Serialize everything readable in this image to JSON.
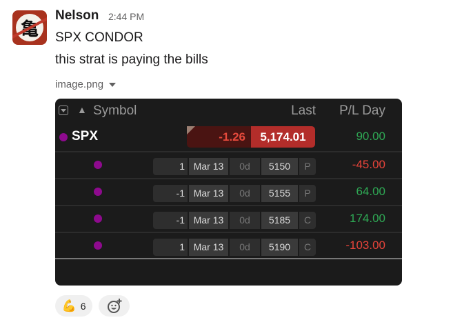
{
  "message": {
    "avatar_glyph": "亀",
    "author": "Nelson",
    "time": "2:44 PM",
    "lines": [
      "SPX CONDOR",
      "this strat is paying the bills"
    ],
    "attachment_name": "image.png"
  },
  "table": {
    "headers": {
      "symbol": "Symbol",
      "last": "Last",
      "pl_day": "P/L Day"
    },
    "underlying": {
      "symbol": "SPX",
      "change": "-1.26",
      "last": "5,174.01",
      "pl_day": "90.00"
    },
    "legs": [
      {
        "qty": "1",
        "expiry": "Mar 13",
        "dte": "0d",
        "strike": "5150",
        "type": "P",
        "pl_day": "-45.00"
      },
      {
        "qty": "-1",
        "expiry": "Mar 13",
        "dte": "0d",
        "strike": "5155",
        "type": "P",
        "pl_day": "64.00"
      },
      {
        "qty": "-1",
        "expiry": "Mar 13",
        "dte": "0d",
        "strike": "5185",
        "type": "C",
        "pl_day": "174.00"
      },
      {
        "qty": "1",
        "expiry": "Mar 13",
        "dte": "0d",
        "strike": "5190",
        "type": "C",
        "pl_day": "-103.00"
      }
    ],
    "colors": {
      "positive": "#2faa55",
      "negative": "#e8443a",
      "dot": "#8e0a8e"
    }
  },
  "reactions": [
    {
      "emoji": "💪",
      "count": "6"
    }
  ],
  "add_reaction_icon": "add-emoji-icon"
}
